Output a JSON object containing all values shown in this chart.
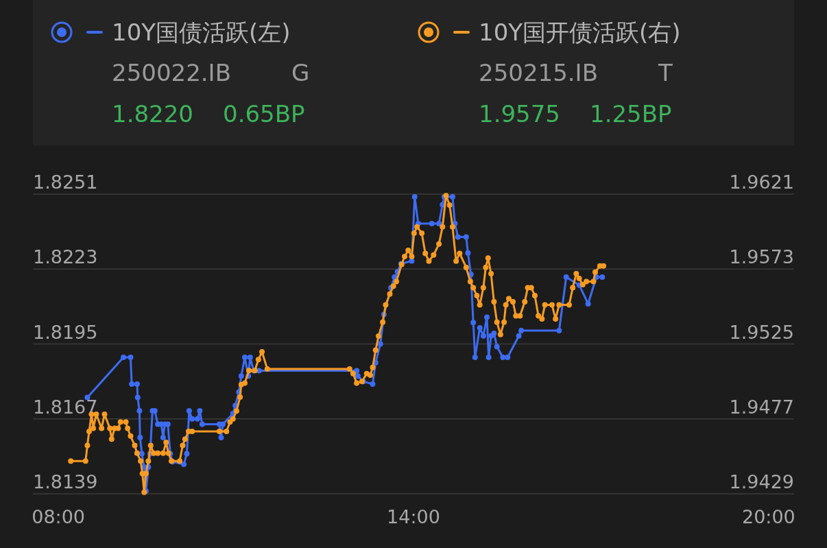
{
  "chart_data": {
    "type": "line",
    "xlim": [
      7.57,
      20.43
    ],
    "xticks": [
      {
        "value": 8,
        "label": "08:00"
      },
      {
        "value": 14,
        "label": "14:00"
      },
      {
        "value": 20,
        "label": "20:00"
      }
    ],
    "ylim": [
      1.8139,
      1.8251
    ],
    "yticks": [
      1.8139,
      1.8167,
      1.8195,
      1.8223,
      1.8251
    ],
    "y2lim": [
      1.9429,
      1.9621
    ],
    "y2ticks": [
      1.9429,
      1.9477,
      1.9525,
      1.9573,
      1.9621
    ],
    "grid": "y",
    "legend": "top",
    "marker": "circle",
    "line_style": "solid",
    "annotations": [
      "250022.IB",
      "G",
      "1.8220",
      "0.65BP",
      "250215.IB",
      "T",
      "1.9575",
      "1.25BP"
    ],
    "series": [
      {
        "name": "10Y国债活跃(左)",
        "color": "#3d6cf2",
        "axis": "y",
        "x": [
          8.49,
          9.1,
          9.22,
          9.24,
          9.33,
          9.34,
          9.37,
          9.38,
          9.41,
          9.45,
          9.48,
          9.52,
          9.55,
          9.59,
          9.63,
          9.68,
          9.74,
          9.77,
          9.8,
          9.85,
          9.89,
          9.93,
          10.12,
          10.17,
          10.21,
          10.26,
          10.35,
          10.39,
          10.43,
          10.72,
          10.75,
          10.78,
          10.95,
          10.99,
          11.05,
          11.09,
          11.15,
          11.21,
          11.24,
          11.3,
          11.39,
          13.04,
          13.06,
          13.15,
          13.31,
          13.36,
          13.44,
          13.5,
          13.62,
          13.68,
          13.73,
          13.79,
          13.97,
          14.02,
          14.08,
          14.31,
          14.43,
          14.49,
          14.52,
          14.66,
          14.7,
          14.75,
          14.89,
          14.92,
          14.97,
          15.01,
          15.04,
          15.12,
          15.18,
          15.24,
          15.27,
          15.31,
          15.36,
          15.41,
          15.51,
          15.59,
          15.78,
          15.82,
          16.46,
          16.58,
          16.8,
          16.95,
          17.09,
          17.19
        ],
        "values": [
          1.8175,
          1.819,
          1.819,
          1.818,
          1.818,
          1.8175,
          1.817,
          1.816,
          1.8154,
          1.8149,
          1.814,
          1.8149,
          1.8154,
          1.817,
          1.817,
          1.8165,
          1.8165,
          1.816,
          1.8165,
          1.8165,
          1.8154,
          1.8151,
          1.815,
          1.8154,
          1.817,
          1.8167,
          1.8167,
          1.817,
          1.8165,
          1.8165,
          1.816,
          1.8165,
          1.8169,
          1.8172,
          1.8177,
          1.8183,
          1.819,
          1.8183,
          1.819,
          1.8185,
          1.8185,
          1.8185,
          1.8183,
          1.8181,
          1.818,
          1.8188,
          1.8195,
          1.8206,
          1.8216,
          1.822,
          1.8222,
          1.8225,
          1.8226,
          1.825,
          1.824,
          1.824,
          1.824,
          1.8247,
          1.825,
          1.825,
          1.824,
          1.8235,
          1.8235,
          1.8229,
          1.8221,
          1.8203,
          1.819,
          1.8201,
          1.8198,
          1.8205,
          1.819,
          1.8198,
          1.8199,
          1.8194,
          1.819,
          1.819,
          1.8198,
          1.82,
          1.82,
          1.822,
          1.8217,
          1.821,
          1.822,
          1.822
        ]
      },
      {
        "name": "10Y国开债活跃(右)",
        "color": "#f79b22",
        "axis": "y2",
        "x": [
          8.21,
          8.46,
          8.49,
          8.52,
          8.56,
          8.59,
          8.64,
          8.73,
          8.78,
          8.87,
          8.9,
          8.95,
          9.01,
          9.05,
          9.14,
          9.17,
          9.22,
          9.29,
          9.33,
          9.39,
          9.42,
          9.45,
          9.48,
          9.52,
          9.56,
          9.61,
          9.68,
          9.77,
          9.82,
          9.86,
          9.91,
          10.05,
          10.1,
          10.14,
          10.2,
          10.26,
          10.72,
          10.84,
          10.9,
          10.95,
          11.01,
          11.07,
          11.09,
          11.15,
          11.22,
          11.32,
          11.38,
          11.44,
          11.53,
          12.92,
          12.98,
          13.04,
          13.13,
          13.21,
          13.27,
          13.31,
          13.36,
          13.41,
          13.48,
          13.53,
          13.6,
          13.66,
          13.71,
          13.8,
          13.85,
          13.91,
          13.97,
          14.01,
          14.06,
          14.14,
          14.2,
          14.26,
          14.34,
          14.43,
          14.49,
          14.55,
          14.61,
          14.66,
          14.72,
          14.78,
          14.89,
          14.96,
          15.01,
          15.07,
          15.12,
          15.18,
          15.22,
          15.26,
          15.31,
          15.36,
          15.41,
          15.47,
          15.53,
          15.56,
          15.61,
          15.68,
          15.73,
          15.8,
          15.88,
          15.93,
          15.99,
          16.05,
          16.11,
          16.17,
          16.22,
          16.34,
          16.4,
          16.46,
          16.63,
          16.69,
          16.75,
          16.8,
          16.86,
          16.92,
          17.04,
          17.07,
          17.15,
          17.21
        ],
        "values": [
          1.945,
          1.945,
          1.946,
          1.9469,
          1.948,
          1.9471,
          1.948,
          1.9471,
          1.948,
          1.9471,
          1.9464,
          1.9471,
          1.9471,
          1.9475,
          1.9475,
          1.9471,
          1.9466,
          1.946,
          1.9455,
          1.945,
          1.9442,
          1.943,
          1.9442,
          1.945,
          1.946,
          1.9455,
          1.9455,
          1.9455,
          1.9462,
          1.9455,
          1.945,
          1.945,
          1.946,
          1.9464,
          1.9469,
          1.9469,
          1.9469,
          1.9469,
          1.9475,
          1.9477,
          1.9482,
          1.9491,
          1.9499,
          1.95,
          1.9508,
          1.9508,
          1.9515,
          1.952,
          1.9509,
          1.9509,
          1.9506,
          1.95,
          1.9501,
          1.9506,
          1.9505,
          1.951,
          1.9521,
          1.953,
          1.9539,
          1.955,
          1.9557,
          1.9562,
          1.9565,
          1.9576,
          1.9581,
          1.9585,
          1.9581,
          1.9596,
          1.96,
          1.9596,
          1.9583,
          1.9578,
          1.9582,
          1.9589,
          1.96,
          1.962,
          1.9614,
          1.96,
          1.9578,
          1.9583,
          1.9574,
          1.9565,
          1.9561,
          1.9556,
          1.955,
          1.9561,
          1.9574,
          1.958,
          1.957,
          1.9552,
          1.9539,
          1.9531,
          1.9539,
          1.955,
          1.9554,
          1.9552,
          1.9543,
          1.9543,
          1.9552,
          1.9561,
          1.9561,
          1.9556,
          1.9543,
          1.9541,
          1.955,
          1.955,
          1.9541,
          1.955,
          1.955,
          1.9561,
          1.957,
          1.9567,
          1.9563,
          1.9565,
          1.9565,
          1.9571,
          1.9575,
          1.9575
        ]
      }
    ]
  }
}
